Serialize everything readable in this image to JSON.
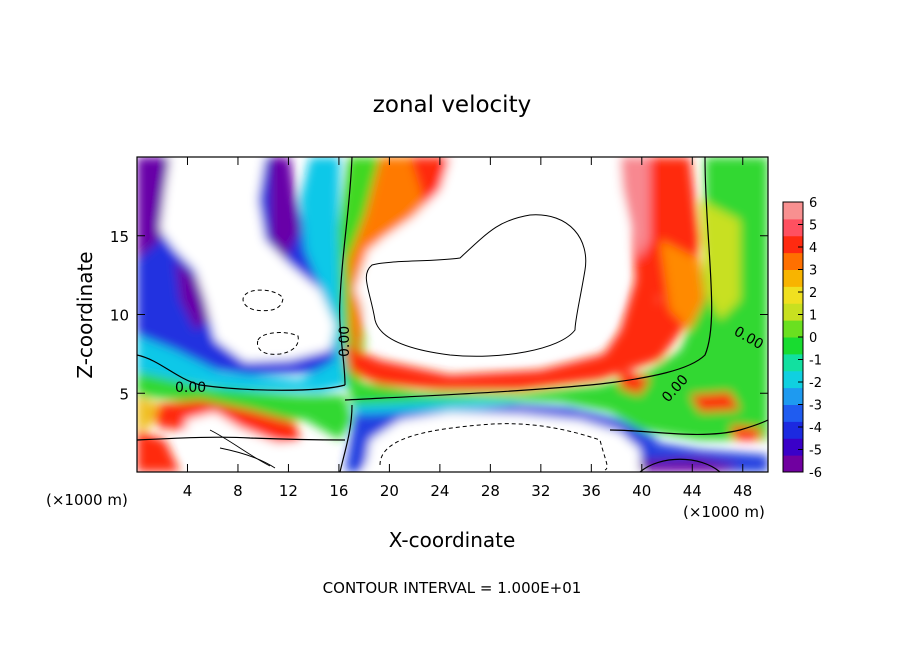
{
  "chart_data": {
    "type": "heatmap",
    "title": "zonal velocity",
    "xlabel": "X-coordinate",
    "ylabel": "Z-coordinate",
    "x_unit_note_left": "(×1000 m)",
    "x_unit_note_right": "(×1000 m)",
    "footer": "CONTOUR INTERVAL = 1.000E+01",
    "xlim": [
      0,
      50
    ],
    "ylim": [
      0,
      20
    ],
    "x_ticks": [
      4,
      8,
      12,
      16,
      20,
      24,
      28,
      32,
      36,
      40,
      44,
      48
    ],
    "y_ticks": [
      5,
      10,
      15
    ],
    "colorbar": {
      "ticks": [
        6,
        5,
        4,
        3,
        2,
        1,
        0,
        -1,
        -2,
        -3,
        -4,
        -5,
        -6
      ],
      "min": -6,
      "max": 6,
      "colors": [
        "#7000a0",
        "#3a00c8",
        "#1c2ae0",
        "#1f5cf0",
        "#1e9af0",
        "#10d0e0",
        "#12e0a0",
        "#18dc30",
        "#6ae020",
        "#c8e020",
        "#f0e020",
        "#f8b400",
        "#ff7000",
        "#ff2a10",
        "#ff5060",
        "#f89090"
      ]
    },
    "contour_labels": [
      "0.00",
      "0.00",
      "0.00",
      "0.00"
    ]
  }
}
